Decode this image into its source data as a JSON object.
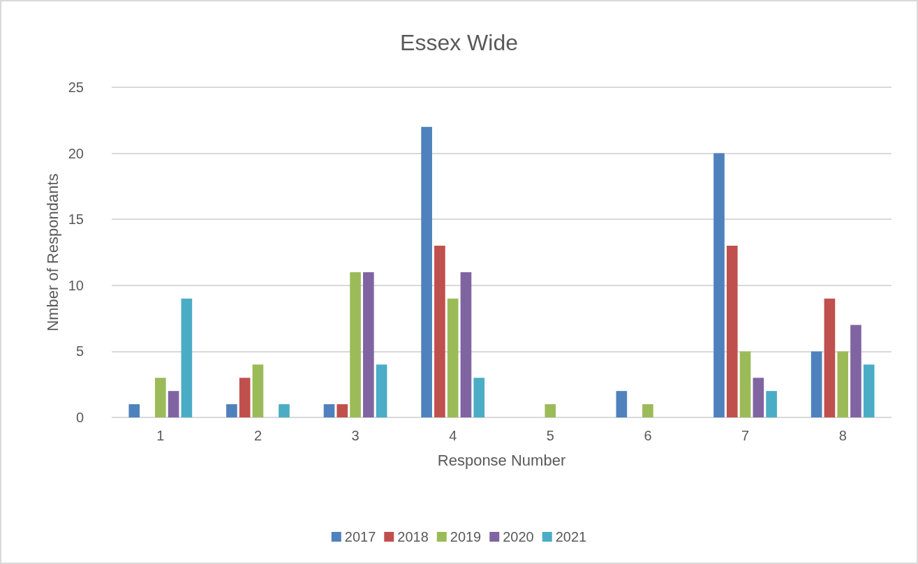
{
  "chart_data": {
    "type": "bar",
    "title": "Essex Wide",
    "xlabel": "Response Number",
    "ylabel": "Nmber of Respondants",
    "categories": [
      "1",
      "2",
      "3",
      "4",
      "5",
      "6",
      "7",
      "8"
    ],
    "series": [
      {
        "name": "2017",
        "color": "#4f81bd",
        "values": [
          1,
          1,
          1,
          22,
          0,
          2,
          20,
          5
        ]
      },
      {
        "name": "2018",
        "color": "#c0504d",
        "values": [
          0,
          3,
          1,
          13,
          0,
          0,
          13,
          9
        ]
      },
      {
        "name": "2019",
        "color": "#9bbb59",
        "values": [
          3,
          4,
          11,
          9,
          1,
          1,
          5,
          5
        ]
      },
      {
        "name": "2020",
        "color": "#8064a2",
        "values": [
          2,
          0,
          11,
          11,
          0,
          0,
          3,
          7
        ]
      },
      {
        "name": "2021",
        "color": "#4bacc6",
        "values": [
          9,
          1,
          4,
          3,
          0,
          0,
          2,
          4
        ]
      }
    ],
    "ylim": [
      0,
      25
    ],
    "yticks": [
      0,
      5,
      10,
      15,
      20,
      25
    ],
    "grid": "y",
    "legend": "bottom"
  }
}
